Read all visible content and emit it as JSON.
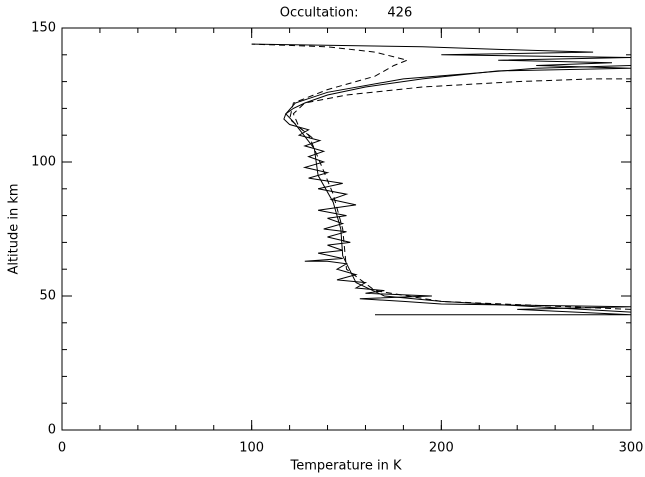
{
  "chart_data": {
    "type": "line",
    "title": "Occultation:       426",
    "xlabel": "Temperature in K",
    "ylabel": "Altitude in km",
    "xlim": [
      0,
      300
    ],
    "ylim": [
      0,
      150
    ],
    "xticks": [
      0,
      100,
      200,
      300
    ],
    "yticks": [
      0,
      50,
      100,
      150
    ],
    "x_minor_ticks": 20,
    "y_minor_ticks": 10,
    "series": [
      {
        "color": "#000000",
        "dashed": false,
        "x": [
          165,
          300,
          240,
          300,
          200,
          180,
          157,
          195,
          160,
          170,
          155,
          160,
          145,
          155,
          145,
          150,
          140,
          128,
          148,
          135,
          148,
          140,
          152,
          140,
          150,
          138,
          148,
          140,
          150,
          135,
          155,
          142,
          150,
          135,
          148,
          130,
          140,
          128,
          138,
          130,
          138,
          128,
          136,
          125,
          130,
          120,
          117,
          118,
          122,
          128,
          140,
          160,
          190,
          230,
          300,
          250,
          290,
          230,
          300,
          200,
          280,
          230,
          190,
          100
        ],
        "values": [
          43,
          43,
          45,
          46,
          47,
          48,
          49,
          50,
          51,
          52,
          53,
          55,
          56,
          58,
          60,
          62,
          63,
          63,
          64,
          66,
          67,
          69,
          70,
          72,
          74,
          75,
          77,
          79,
          80,
          82,
          84,
          86,
          88,
          90,
          92,
          94,
          96,
          98,
          100,
          102,
          104,
          106,
          108,
          110,
          112,
          114,
          116,
          118,
          120,
          122,
          125,
          128,
          131,
          134,
          135,
          136,
          137,
          138,
          139,
          140,
          141,
          142,
          143,
          144
        ]
      },
      {
        "color": "#000000",
        "dashed": false,
        "x": [
          300,
          200,
          170,
          155,
          148,
          147,
          143,
          135,
          133,
          122,
          118,
          123,
          140,
          180,
          250,
          300
        ],
        "values": [
          44,
          48,
          50,
          55,
          65,
          75,
          85,
          95,
          105,
          115,
          118,
          122,
          126,
          131,
          135,
          136
        ]
      },
      {
        "color": "#000000",
        "dashed": true,
        "x": [
          300,
          200,
          165,
          150,
          148,
          143,
          136,
          130,
          120,
          122,
          140,
          165,
          175,
          182,
          165,
          140,
          100
        ],
        "values": [
          45,
          48,
          52,
          60,
          75,
          88,
          100,
          110,
          116,
          122,
          127,
          132,
          136,
          138,
          141,
          143,
          144
        ]
      },
      {
        "color": "#000000",
        "dashed": true,
        "x": [
          132,
          125,
          122,
          128,
          150,
          190,
          240,
          280,
          300
        ],
        "values": [
          109,
          113,
          118,
          122,
          125,
          128,
          130,
          131,
          131
        ]
      }
    ]
  }
}
